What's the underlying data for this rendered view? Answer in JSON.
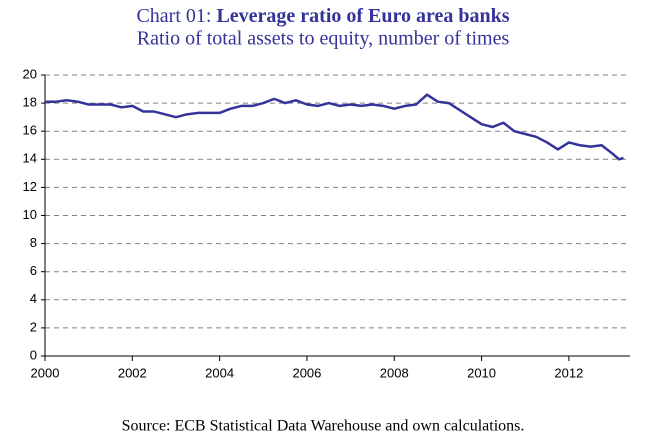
{
  "chart_data": {
    "type": "line",
    "title_label": "Chart 01:",
    "title": "Leverage ratio of Euro area banks",
    "subtitle": "Ratio of total assets to equity, number of times",
    "source": "Source: ECB Statistical Data Warehouse and own calculations.",
    "x": [
      2000.0,
      2000.25,
      2000.5,
      2000.75,
      2001.0,
      2001.25,
      2001.5,
      2001.75,
      2002.0,
      2002.25,
      2002.5,
      2002.75,
      2003.0,
      2003.25,
      2003.5,
      2003.75,
      2004.0,
      2004.25,
      2004.5,
      2004.75,
      2005.0,
      2005.25,
      2005.5,
      2005.75,
      2006.0,
      2006.25,
      2006.5,
      2006.75,
      2007.0,
      2007.25,
      2007.5,
      2007.75,
      2008.0,
      2008.25,
      2008.5,
      2008.75,
      2009.0,
      2009.25,
      2009.5,
      2009.75,
      2010.0,
      2010.25,
      2010.5,
      2010.75,
      2011.0,
      2011.25,
      2011.5,
      2011.75,
      2012.0,
      2012.25,
      2012.5,
      2012.75,
      2013.0,
      2013.15,
      2013.25
    ],
    "series": [
      {
        "name": "Leverage ratio",
        "color": "#333399",
        "values": [
          18.1,
          18.1,
          18.2,
          18.1,
          17.9,
          17.9,
          17.9,
          17.7,
          17.8,
          17.4,
          17.4,
          17.2,
          17.0,
          17.2,
          17.3,
          17.3,
          17.3,
          17.6,
          17.8,
          17.8,
          18.0,
          18.3,
          18.0,
          18.2,
          17.9,
          17.8,
          18.0,
          17.8,
          17.9,
          17.8,
          17.9,
          17.8,
          17.6,
          17.8,
          17.9,
          18.6,
          18.1,
          18.0,
          17.5,
          17.0,
          16.5,
          16.3,
          16.6,
          16.0,
          15.8,
          15.6,
          15.2,
          14.7,
          15.2,
          15.0,
          14.9,
          15.0,
          14.4,
          14.0,
          14.1
        ]
      }
    ],
    "xlim": [
      2000,
      2013.4
    ],
    "xticks": [
      2000,
      2002,
      2004,
      2006,
      2008,
      2010,
      2012
    ],
    "ylim": [
      0,
      20
    ],
    "yticks": [
      0,
      2,
      4,
      6,
      8,
      10,
      12,
      14,
      16,
      18,
      20
    ],
    "grid": true
  }
}
